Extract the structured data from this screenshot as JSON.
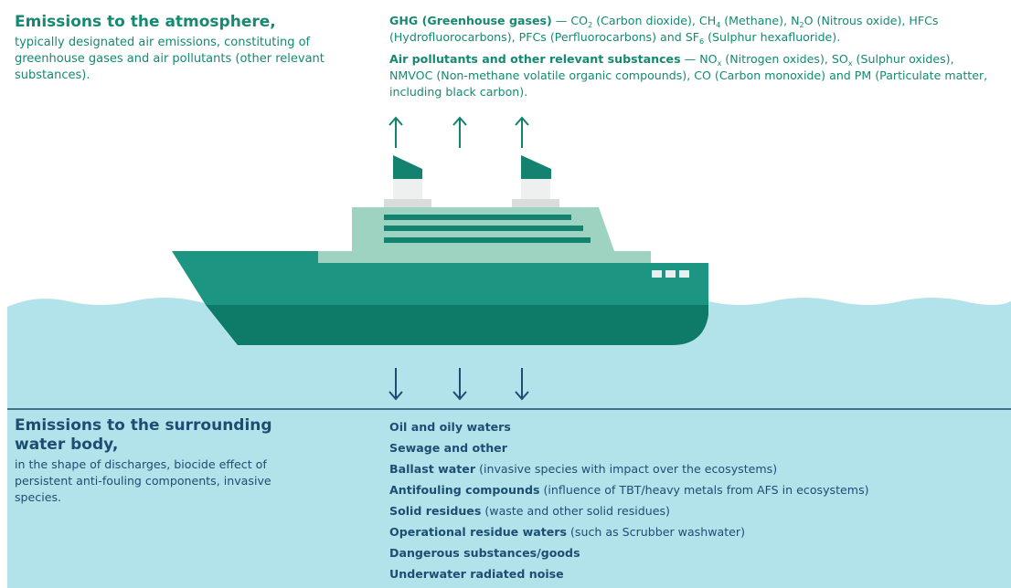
{
  "atmosphere": {
    "title": "Emissions to the atmosphere,",
    "description": "typically designated air emissions, constituting of greenhouse gases and air pollutants (other relevant substances).",
    "ghg": {
      "label": "GHG (Greenhouse gases)",
      "runs": [
        "— CO",
        "2",
        " (Carbon dioxide), CH",
        "4",
        " (Methane), N",
        "2",
        "O (Nitrous oxide), HFCs (Hydrofluorocarbons), PFCs (Perfluorocarbons) and SF",
        "6",
        " (Sulphur hexafluoride)."
      ]
    },
    "air": {
      "label": "Air pollutants and other relevant substances",
      "runs": [
        "— NO",
        "x",
        " (Nitrogen oxides), SO",
        "x",
        " (Sulphur oxides), NMVOC (Non-methane volatile organic compounds), CO (Carbon monoxide) and PM (Particulate matter, including black carbon)."
      ]
    }
  },
  "water": {
    "title": "Emissions to the surrounding water body,",
    "description": "in the shape of discharges, biocide effect of persistent anti-fouling components, invasive species.",
    "items": [
      {
        "bold": "Oil and oily waters"
      },
      {
        "bold": "Sewage and other"
      },
      {
        "bold": "Ballast water",
        "text": "(invasive species with impact over the ecosystems)"
      },
      {
        "bold": "Antifouling compounds",
        "text": "(influence of TBT/heavy metals from AFS in ecosystems)"
      },
      {
        "bold": "Solid residues",
        "text": "(waste and other solid residues)"
      },
      {
        "bold": "Operational residue waters",
        "text": "(such as Scrubber washwater)"
      },
      {
        "bold": "Dangerous substances/goods"
      },
      {
        "bold": "Underwater radiated noise"
      }
    ]
  }
}
